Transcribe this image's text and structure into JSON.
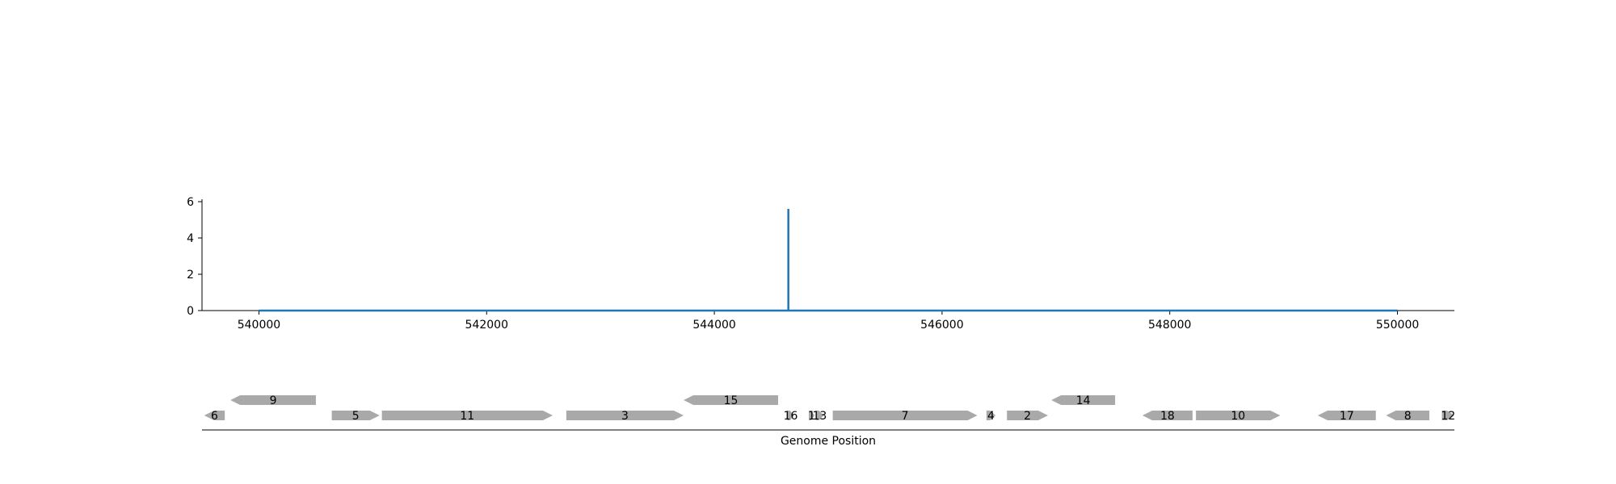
{
  "chart_data": {
    "type": "line",
    "title": "",
    "xlabel": "Genome Position",
    "ylabel": "",
    "xlim": [
      539500,
      550500
    ],
    "ylim": [
      0,
      6
    ],
    "x_ticks": [
      540000,
      542000,
      544000,
      546000,
      548000,
      550000
    ],
    "y_ticks": [
      0,
      2,
      4,
      6
    ],
    "grid": false,
    "series": [
      {
        "color": "#1f77b4",
        "x": [
          540000,
          544650,
          544650,
          544650,
          544650,
          550000
        ],
        "y": [
          0,
          0,
          5.6,
          5.6,
          0,
          0
        ]
      }
    ],
    "genes": [
      {
        "label": "6",
        "start": 539520,
        "end": 539700,
        "strand": "-",
        "row": 0
      },
      {
        "label": "9",
        "start": 539750,
        "end": 540500,
        "strand": "-",
        "row": 1
      },
      {
        "label": "5",
        "start": 540640,
        "end": 541060,
        "strand": "+",
        "row": 0
      },
      {
        "label": "11",
        "start": 541080,
        "end": 542580,
        "strand": "+",
        "row": 0
      },
      {
        "label": "3",
        "start": 542700,
        "end": 543730,
        "strand": "+",
        "row": 0
      },
      {
        "label": "15",
        "start": 543730,
        "end": 544560,
        "strand": "-",
        "row": 1
      },
      {
        "label": "16",
        "start": 544640,
        "end": 544700,
        "strand": "+",
        "row": 0
      },
      {
        "label": "1",
        "start": 544830,
        "end": 544880,
        "strand": "+",
        "row": 0
      },
      {
        "label": "13",
        "start": 544890,
        "end": 544960,
        "strand": "+",
        "row": 0
      },
      {
        "label": "7",
        "start": 545040,
        "end": 546310,
        "strand": "+",
        "row": 0
      },
      {
        "label": "4",
        "start": 546390,
        "end": 546470,
        "strand": "+",
        "row": 0
      },
      {
        "label": "2",
        "start": 546570,
        "end": 546930,
        "strand": "+",
        "row": 0
      },
      {
        "label": "14",
        "start": 546960,
        "end": 547520,
        "strand": "-",
        "row": 1
      },
      {
        "label": "18",
        "start": 547760,
        "end": 548200,
        "strand": "-",
        "row": 0
      },
      {
        "label": "10",
        "start": 548230,
        "end": 548970,
        "strand": "+",
        "row": 0
      },
      {
        "label": "17",
        "start": 549300,
        "end": 549810,
        "strand": "-",
        "row": 0
      },
      {
        "label": "8",
        "start": 549900,
        "end": 550280,
        "strand": "-",
        "row": 0
      },
      {
        "label": "12",
        "start": 550390,
        "end": 550500,
        "strand": "+",
        "row": 0
      }
    ],
    "colors": {
      "line": "#1f77b4",
      "gene": "#a9a9a9",
      "axis": "#000000"
    }
  }
}
